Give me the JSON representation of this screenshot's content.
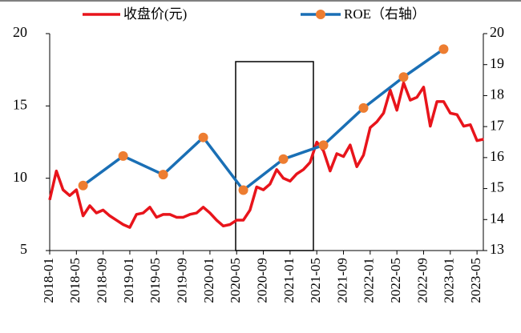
{
  "chart_data": {
    "type": "line",
    "x": [
      "2018-01",
      "2018-02",
      "2018-03",
      "2018-04",
      "2018-05",
      "2018-06",
      "2018-07",
      "2018-08",
      "2018-09",
      "2018-10",
      "2018-11",
      "2018-12",
      "2019-01",
      "2019-02",
      "2019-03",
      "2019-04",
      "2019-05",
      "2019-06",
      "2019-07",
      "2019-08",
      "2019-09",
      "2019-10",
      "2019-11",
      "2019-12",
      "2020-01",
      "2020-02",
      "2020-03",
      "2020-04",
      "2020-05",
      "2020-06",
      "2020-07",
      "2020-08",
      "2020-09",
      "2020-10",
      "2020-11",
      "2020-12",
      "2021-01",
      "2021-02",
      "2021-03",
      "2021-04",
      "2021-05",
      "2021-06",
      "2021-07",
      "2021-08",
      "2021-09",
      "2021-10",
      "2021-11",
      "2021-12",
      "2022-01",
      "2022-02",
      "2022-03",
      "2022-04",
      "2022-05",
      "2022-06",
      "2022-07",
      "2022-08",
      "2022-09",
      "2022-10",
      "2022-11",
      "2022-12",
      "2023-01",
      "2023-02",
      "2023-03",
      "2023-04",
      "2023-05",
      "2023-06"
    ],
    "xticks": [
      "2018-01",
      "2018-05",
      "2018-09",
      "2019-01",
      "2019-05",
      "2019-09",
      "2020-01",
      "2020-05",
      "2020-09",
      "2021-01",
      "2021-05",
      "2021-09",
      "2022-01",
      "2022-05",
      "2022-09",
      "2023-01",
      "2023-05"
    ],
    "series": [
      {
        "name": "收盘价(元)",
        "color": "#e8141b",
        "values": [
          8.5,
          10.5,
          9.2,
          8.8,
          9.2,
          7.4,
          8.1,
          7.6,
          7.8,
          7.4,
          7.1,
          6.8,
          6.6,
          7.5,
          7.6,
          8.0,
          7.3,
          7.5,
          7.5,
          7.3,
          7.3,
          7.5,
          7.6,
          8.0,
          7.6,
          7.1,
          6.7,
          6.8,
          7.1,
          7.1,
          7.8,
          9.4,
          9.2,
          9.6,
          10.6,
          10.0,
          9.8,
          10.3,
          10.6,
          11.1,
          12.5,
          11.9,
          10.5,
          11.7,
          11.5,
          12.3,
          10.8,
          11.6,
          13.5,
          13.9,
          14.5,
          16.1,
          14.7,
          16.6,
          15.4,
          15.6,
          16.3,
          13.6,
          15.3,
          15.3,
          14.5,
          14.4,
          13.6,
          13.7,
          12.6,
          12.7
        ]
      },
      {
        "name": "ROE（右轴）",
        "color": "#1a6fb5",
        "marker_color": "#ed7d31",
        "axis": "y2",
        "x": [
          "2018-06",
          "2018-12",
          "2019-06",
          "2019-12",
          "2020-06",
          "2020-12",
          "2021-06",
          "2021-12",
          "2022-06",
          "2022-12"
        ],
        "values": [
          15.1,
          16.05,
          15.45,
          16.65,
          14.95,
          15.95,
          16.4,
          17.6,
          18.6,
          19.5
        ]
      }
    ],
    "ylim": [
      5,
      20
    ],
    "yticks": [
      5,
      10,
      15,
      20
    ],
    "y2lim": [
      13,
      20
    ],
    "y2ticks": [
      13,
      14,
      15,
      16,
      17,
      18,
      19,
      20
    ]
  }
}
